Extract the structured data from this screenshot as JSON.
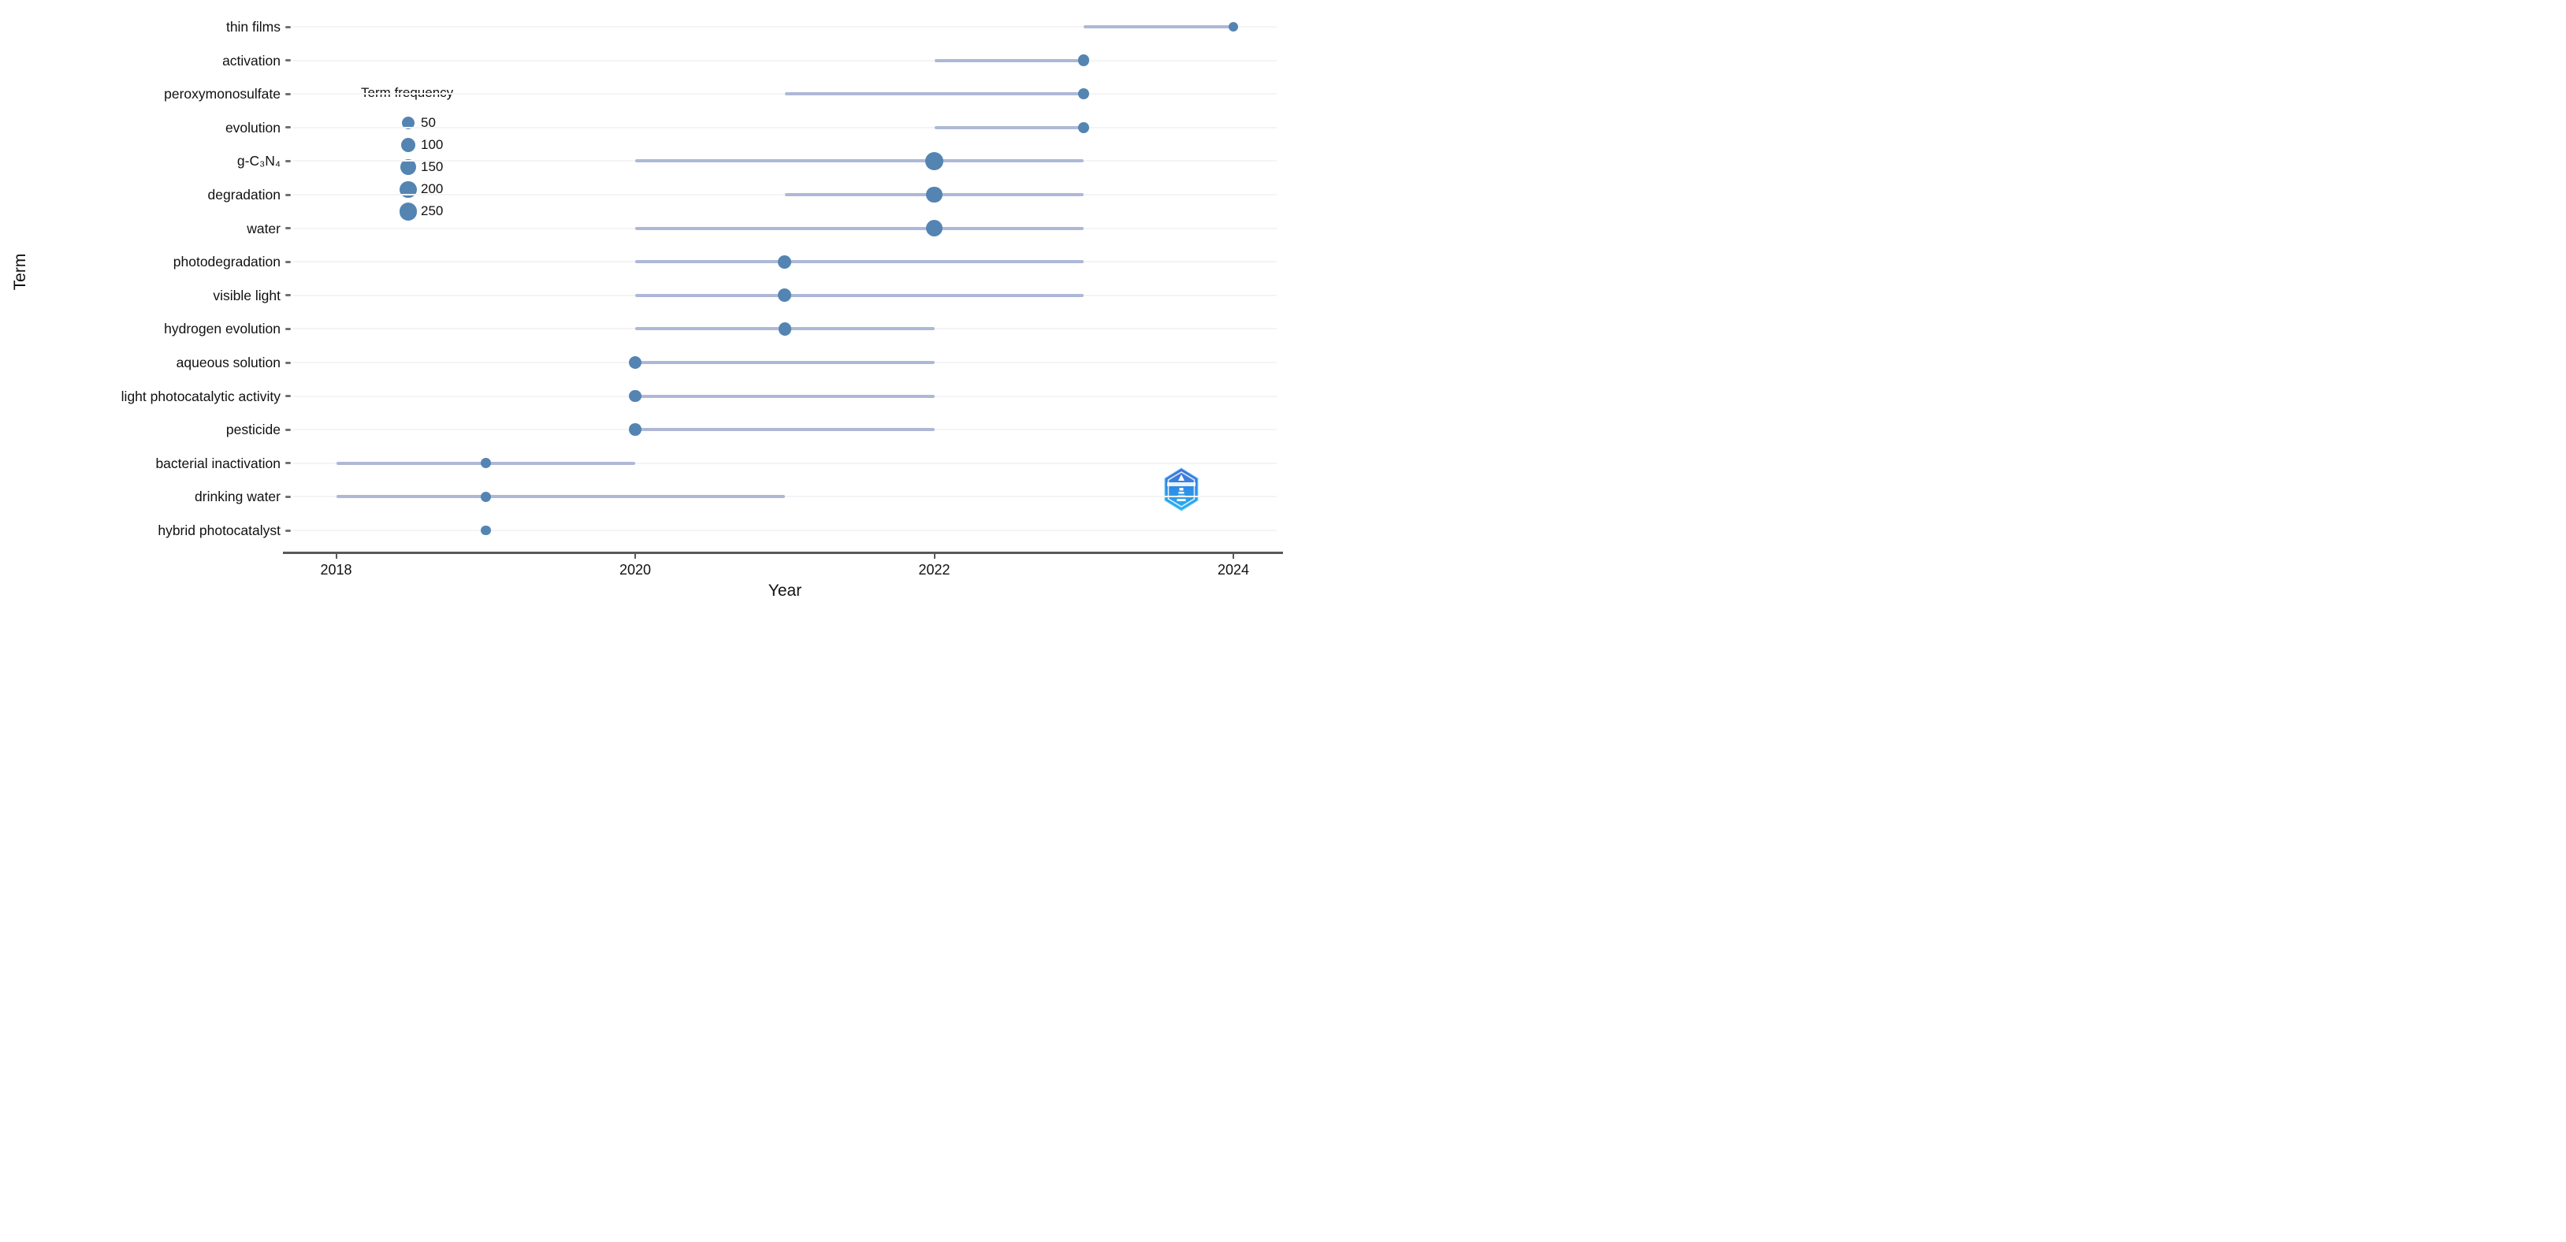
{
  "chart_data": {
    "type": "scatter",
    "subtype": "trend-topics-bubble-timeline",
    "title": "",
    "xlabel": "Year",
    "ylabel": "Term",
    "x_range": [
      2017.7,
      2024.35
    ],
    "x_ticks": [
      2018,
      2020,
      2022,
      2024
    ],
    "grid": "faint horizontal row lines",
    "legend_position": "upper-left inside plot",
    "terms": [
      {
        "term": "thin films",
        "year_start": 2023,
        "year_end": 2024,
        "peak_year": 2024,
        "frequency": 5
      },
      {
        "term": "activation",
        "year_start": 2022,
        "year_end": 2023,
        "peak_year": 2023,
        "frequency": 25
      },
      {
        "term": "peroxymonosulfate",
        "year_start": 2021,
        "year_end": 2023,
        "peak_year": 2023,
        "frequency": 25
      },
      {
        "term": "evolution",
        "year_start": 2022,
        "year_end": 2023,
        "peak_year": 2023,
        "frequency": 25
      },
      {
        "term": "g-C₃N₄",
        "year_start": 2020,
        "year_end": 2023,
        "peak_year": 2022,
        "frequency": 280
      },
      {
        "term": "degradation",
        "year_start": 2021,
        "year_end": 2023,
        "peak_year": 2022,
        "frequency": 160
      },
      {
        "term": "water",
        "year_start": 2020,
        "year_end": 2023,
        "peak_year": 2022,
        "frequency": 190
      },
      {
        "term": "photodegradation",
        "year_start": 2020,
        "year_end": 2023,
        "peak_year": 2021,
        "frequency": 70
      },
      {
        "term": "visible light",
        "year_start": 2020,
        "year_end": 2023,
        "peak_year": 2021,
        "frequency": 70
      },
      {
        "term": "hydrogen evolution",
        "year_start": 2020,
        "year_end": 2022,
        "peak_year": 2021,
        "frequency": 55
      },
      {
        "term": "aqueous solution",
        "year_start": 2020,
        "year_end": 2022,
        "peak_year": 2020,
        "frequency": 50
      },
      {
        "term": "light photocatalytic activity",
        "year_start": 2020,
        "year_end": 2022,
        "peak_year": 2020,
        "frequency": 45
      },
      {
        "term": "pesticide",
        "year_start": 2020,
        "year_end": 2022,
        "peak_year": 2020,
        "frequency": 45
      },
      {
        "term": "bacterial inactivation",
        "year_start": 2018,
        "year_end": 2020,
        "peak_year": 2019,
        "frequency": 12
      },
      {
        "term": "drinking water",
        "year_start": 2018,
        "year_end": 2021,
        "peak_year": 2019,
        "frequency": 12
      },
      {
        "term": "hybrid photocatalyst",
        "year_start": 2019,
        "year_end": 2019,
        "peak_year": 2019,
        "frequency": 8
      }
    ]
  },
  "axes": {
    "x_title": "Year",
    "y_title": "Term"
  },
  "legend": {
    "title": "Term frequency",
    "values": [
      50,
      100,
      150,
      200,
      250
    ]
  },
  "watermark": {
    "icon": "hexagon-lighthouse-logo"
  },
  "colors": {
    "dot": "#5484b2",
    "period_line": "#aeb8d6",
    "axis": "#595959",
    "gridline": "#f4f4f6",
    "text": "#1a1a1a",
    "logo_top": "#4a6fd6",
    "logo_bottom": "#27b3f2"
  }
}
